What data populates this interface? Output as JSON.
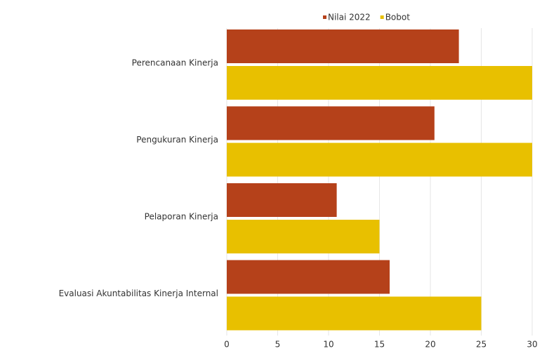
{
  "chart_data": {
    "type": "hbar",
    "categories": [
      "Perencanaan Kinerja",
      "Pengukuran Kinerja",
      "Pelaporan Kinerja",
      "Evaluasi Akuntabilitas Kinerja Internal"
    ],
    "series": [
      {
        "name": "Nilai 2022",
        "color": "#b5411a",
        "values": [
          22.8,
          20.4,
          10.8,
          16.0
        ]
      },
      {
        "name": "Bobot",
        "color": "#e8c000",
        "values": [
          30,
          30,
          15,
          25
        ]
      }
    ],
    "xlim": [
      0,
      30
    ],
    "xticks": [
      0,
      5,
      10,
      15,
      20,
      25,
      30
    ],
    "grid": true,
    "legend": "top"
  }
}
